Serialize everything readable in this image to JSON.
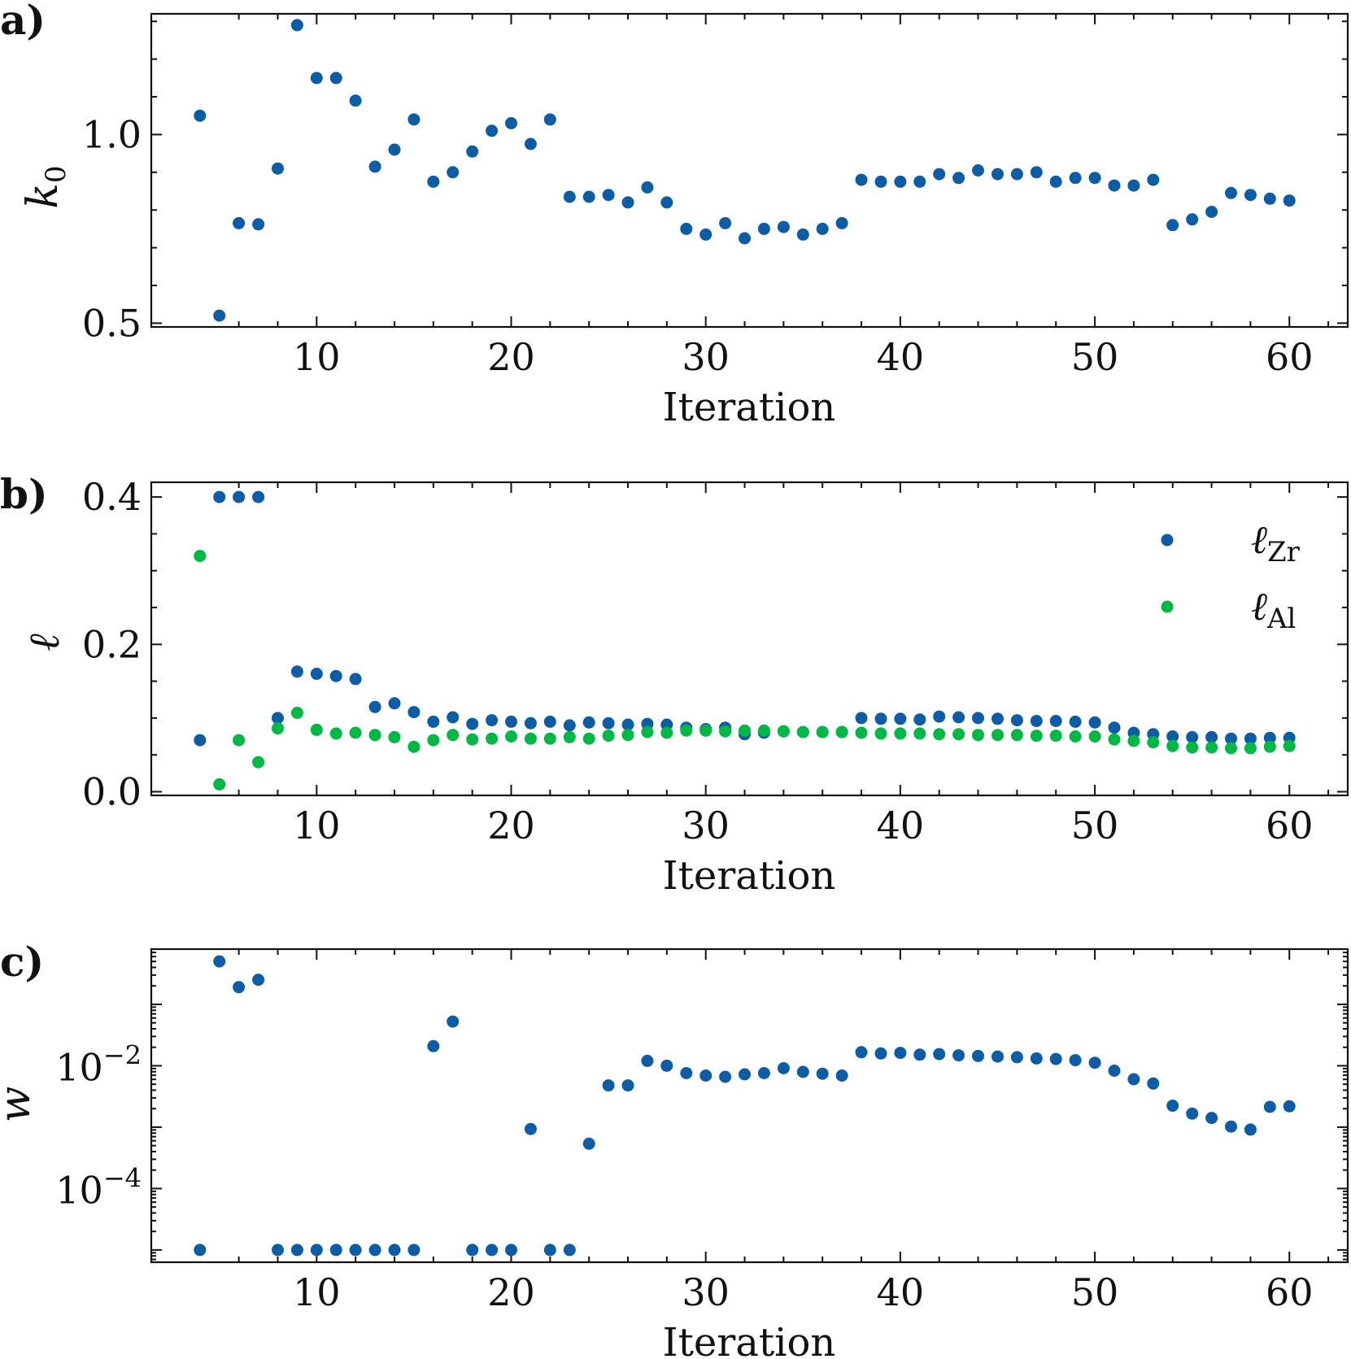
{
  "chart_data": [
    {
      "type": "scatter",
      "panel": "a)",
      "xlabel": "Iteration",
      "ylabel": "k0",
      "ylabel_main": "k",
      "ylabel_sub": "0",
      "xlim": [
        1.5,
        63
      ],
      "ylim": [
        0.49,
        1.32
      ],
      "xticks": [
        10,
        20,
        30,
        40,
        50,
        60
      ],
      "xtick_labels": [
        "10",
        "20",
        "30",
        "40",
        "50",
        "60"
      ],
      "yticks": [
        0.5,
        1.0
      ],
      "ytick_labels": [
        "0.5",
        "1.0"
      ],
      "yscale": "linear",
      "series": [
        {
          "name": "k0",
          "color": "#0C5DA5",
          "x": [
            4,
            5,
            6,
            7,
            8,
            9,
            10,
            11,
            12,
            13,
            14,
            15,
            16,
            17,
            18,
            19,
            20,
            21,
            22,
            23,
            24,
            25,
            26,
            27,
            28,
            29,
            30,
            31,
            32,
            33,
            34,
            35,
            36,
            37,
            38,
            39,
            40,
            41,
            42,
            43,
            44,
            45,
            46,
            47,
            48,
            49,
            50,
            51,
            52,
            53,
            54,
            55,
            56,
            57,
            58,
            59,
            60
          ],
          "y": [
            1.05,
            0.52,
            0.765,
            0.762,
            0.91,
            1.29,
            1.15,
            1.15,
            1.09,
            0.915,
            0.96,
            1.04,
            0.875,
            0.9,
            0.955,
            1.01,
            1.03,
            0.975,
            1.04,
            0.835,
            0.835,
            0.84,
            0.82,
            0.86,
            0.82,
            0.75,
            0.735,
            0.765,
            0.725,
            0.75,
            0.755,
            0.735,
            0.75,
            0.765,
            0.88,
            0.875,
            0.875,
            0.875,
            0.895,
            0.885,
            0.905,
            0.895,
            0.895,
            0.9,
            0.875,
            0.885,
            0.885,
            0.865,
            0.865,
            0.88,
            0.76,
            0.775,
            0.795,
            0.845,
            0.84,
            0.83,
            0.825
          ]
        }
      ]
    },
    {
      "type": "scatter",
      "panel": "b)",
      "xlabel": "Iteration",
      "ylabel": "ℓ",
      "xlim": [
        1.5,
        63
      ],
      "ylim": [
        -0.005,
        0.42
      ],
      "xticks": [
        10,
        20,
        30,
        40,
        50,
        60
      ],
      "xtick_labels": [
        "10",
        "20",
        "30",
        "40",
        "50",
        "60"
      ],
      "yticks": [
        0.0,
        0.2,
        0.4
      ],
      "ytick_labels": [
        "0.0",
        "0.2",
        "0.4"
      ],
      "yscale": "linear",
      "legend_position": "top-right",
      "series": [
        {
          "name": "ℓZr",
          "legend_main": "ℓ",
          "legend_sub": "Zr",
          "color": "#0C5DA5",
          "x": [
            4,
            5,
            6,
            7,
            8,
            9,
            10,
            11,
            12,
            13,
            14,
            15,
            16,
            17,
            18,
            19,
            20,
            21,
            22,
            23,
            24,
            25,
            26,
            27,
            28,
            29,
            30,
            31,
            32,
            33,
            34,
            35,
            36,
            37,
            38,
            39,
            40,
            41,
            42,
            43,
            44,
            45,
            46,
            47,
            48,
            49,
            50,
            51,
            52,
            53,
            54,
            55,
            56,
            57,
            58,
            59,
            60
          ],
          "y": [
            0.07,
            0.4,
            0.4,
            0.4,
            0.1,
            0.163,
            0.16,
            0.157,
            0.153,
            0.115,
            0.12,
            0.108,
            0.095,
            0.101,
            0.092,
            0.097,
            0.095,
            0.093,
            0.095,
            0.09,
            0.094,
            0.093,
            0.091,
            0.092,
            0.091,
            0.087,
            0.085,
            0.087,
            0.078,
            0.08,
            0.082,
            0.081,
            0.081,
            0.081,
            0.1,
            0.099,
            0.099,
            0.098,
            0.102,
            0.101,
            0.1,
            0.099,
            0.097,
            0.096,
            0.096,
            0.095,
            0.094,
            0.087,
            0.08,
            0.078,
            0.075,
            0.074,
            0.074,
            0.072,
            0.072,
            0.073,
            0.073
          ]
        },
        {
          "name": "ℓAl",
          "legend_main": "ℓ",
          "legend_sub": "Al",
          "color": "#00B945",
          "x": [
            4,
            5,
            6,
            7,
            8,
            9,
            10,
            11,
            12,
            13,
            14,
            15,
            16,
            17,
            18,
            19,
            20,
            21,
            22,
            23,
            24,
            25,
            26,
            27,
            28,
            29,
            30,
            31,
            32,
            33,
            34,
            35,
            36,
            37,
            38,
            39,
            40,
            41,
            42,
            43,
            44,
            45,
            46,
            47,
            48,
            49,
            50,
            51,
            52,
            53,
            54,
            55,
            56,
            57,
            58,
            59,
            60
          ],
          "y": [
            0.32,
            0.01,
            0.07,
            0.04,
            0.086,
            0.107,
            0.084,
            0.079,
            0.08,
            0.077,
            0.074,
            0.061,
            0.07,
            0.077,
            0.071,
            0.072,
            0.075,
            0.072,
            0.072,
            0.074,
            0.072,
            0.076,
            0.077,
            0.081,
            0.08,
            0.083,
            0.083,
            0.082,
            0.083,
            0.083,
            0.082,
            0.081,
            0.081,
            0.081,
            0.08,
            0.079,
            0.079,
            0.079,
            0.078,
            0.078,
            0.077,
            0.077,
            0.077,
            0.076,
            0.076,
            0.075,
            0.075,
            0.071,
            0.069,
            0.067,
            0.062,
            0.06,
            0.06,
            0.059,
            0.059,
            0.061,
            0.062
          ]
        }
      ]
    },
    {
      "type": "scatter",
      "panel": "c)",
      "xlabel": "Iteration",
      "ylabel": "w",
      "xlim": [
        1.5,
        63
      ],
      "ylim_log10": [
        -5.2,
        -0.1
      ],
      "xticks": [
        10,
        20,
        30,
        40,
        50,
        60
      ],
      "xtick_labels": [
        "10",
        "20",
        "30",
        "40",
        "50",
        "60"
      ],
      "yticks_log10": [
        -2,
        -4
      ],
      "ytick_base": "10",
      "ytick_exponents": [
        "−2",
        "−4"
      ],
      "yscale": "log",
      "series": [
        {
          "name": "w",
          "color": "#0C5DA5",
          "x": [
            4,
            5,
            6,
            7,
            8,
            9,
            10,
            11,
            12,
            13,
            14,
            15,
            16,
            17,
            18,
            19,
            20,
            21,
            22,
            23,
            24,
            25,
            26,
            27,
            28,
            29,
            30,
            31,
            32,
            33,
            34,
            35,
            36,
            37,
            38,
            39,
            40,
            41,
            42,
            43,
            44,
            45,
            46,
            47,
            48,
            49,
            50,
            51,
            52,
            53,
            54,
            55,
            56,
            57,
            58,
            59,
            60
          ],
          "y_log10": [
            -5.0,
            -0.3,
            -0.72,
            -0.6,
            -5.0,
            -5.0,
            -5.0,
            -5.0,
            -5.0,
            -5.0,
            -5.0,
            -5.0,
            -1.68,
            -1.28,
            -5.0,
            -5.0,
            -5.0,
            -3.03,
            -5.0,
            -5.0,
            -3.27,
            -2.32,
            -2.32,
            -1.92,
            -2.0,
            -2.12,
            -2.16,
            -2.18,
            -2.14,
            -2.12,
            -2.04,
            -2.1,
            -2.13,
            -2.16,
            -1.78,
            -1.8,
            -1.79,
            -1.82,
            -1.81,
            -1.83,
            -1.84,
            -1.85,
            -1.86,
            -1.88,
            -1.89,
            -1.91,
            -1.95,
            -2.08,
            -2.22,
            -2.29,
            -2.65,
            -2.78,
            -2.85,
            -2.99,
            -3.04,
            -2.67,
            -2.66
          ]
        }
      ]
    }
  ]
}
